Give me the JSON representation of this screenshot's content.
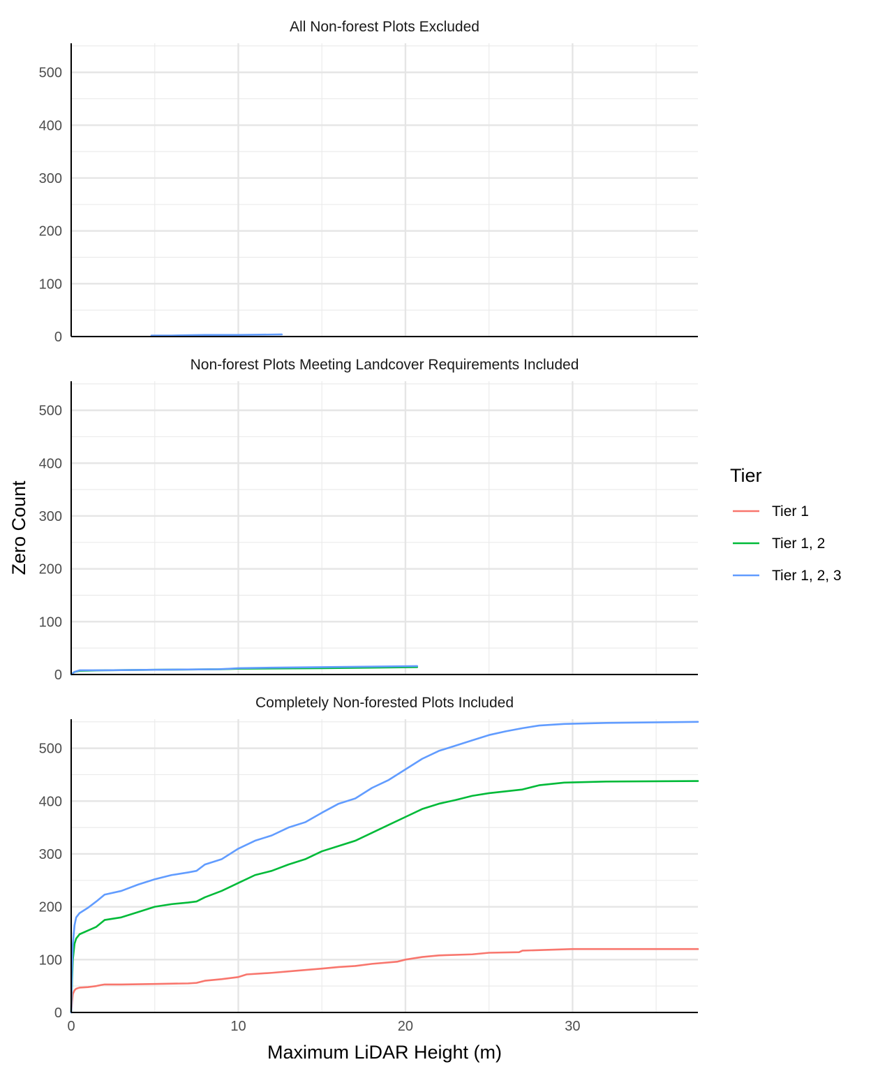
{
  "chart_data": {
    "type": "line",
    "xlabel": "Maximum LiDAR Height (m)",
    "ylabel": "Zero Count",
    "xlim": [
      0,
      37.5
    ],
    "ylim": [
      0,
      555
    ],
    "x_ticks": [
      0,
      10,
      20,
      30
    ],
    "x_tick_labels": [
      "0",
      "10",
      "20",
      "30"
    ],
    "y_ticks": [
      0,
      100,
      200,
      300,
      400,
      500
    ],
    "y_tick_labels": [
      "0",
      "100",
      "200",
      "300",
      "400",
      "500"
    ],
    "grid": true,
    "legend": {
      "title": "Tier",
      "position": "right",
      "entries": [
        {
          "label": "Tier 1",
          "color": "#F8766D"
        },
        {
          "label": "Tier 1, 2",
          "color": "#00BA38"
        },
        {
          "label": "Tier 1, 2, 3",
          "color": "#619CFF"
        }
      ]
    },
    "panels": [
      {
        "title": "All Non-forest Plots Excluded",
        "series": [
          {
            "name": "Tier 1, 2, 3",
            "color": "#619CFF",
            "x": [
              4.8,
              6,
              8,
              10,
              12.6
            ],
            "y": [
              2,
              2,
              3,
              3,
              4
            ]
          }
        ]
      },
      {
        "title": "Non-forest Plots Meeting Landcover Requirements Included",
        "series": [
          {
            "name": "Tier 1, 2",
            "color": "#00BA38",
            "x": [
              0,
              0.2,
              0.5,
              2,
              5,
              9,
              10,
              15,
              20.7
            ],
            "y": [
              0,
              5,
              7,
              8,
              9,
              10,
              11,
              12,
              14
            ]
          },
          {
            "name": "Tier 1, 2, 3",
            "color": "#619CFF",
            "x": [
              0,
              0.2,
              0.5,
              2,
              5,
              8.8,
              9.5,
              10,
              12,
              15,
              18,
              20.7
            ],
            "y": [
              0,
              5,
              8,
              8,
              9,
              10,
              11,
              12,
              13,
              14,
              15,
              16
            ]
          }
        ]
      },
      {
        "title": "Completely Non-forested Plots Included",
        "series": [
          {
            "name": "Tier 1",
            "color": "#F8766D",
            "x": [
              0,
              0.05,
              0.1,
              0.2,
              0.3,
              0.5,
              1,
              1.5,
              1.8,
              2,
              3,
              5,
              7,
              7.5,
              8,
              9,
              10,
              10.5,
              12,
              13.5,
              15,
              16,
              17,
              18,
              19.5,
              20,
              21,
              22,
              24,
              25,
              26.8,
              27,
              30,
              37.5
            ],
            "y": [
              0,
              20,
              35,
              42,
              45,
              47,
              48,
              50,
              52,
              53,
              53,
              54,
              55,
              56,
              60,
              63,
              67,
              72,
              75,
              79,
              83,
              86,
              88,
              92,
              96,
              100,
              105,
              108,
              110,
              113,
              114,
              117,
              120,
              120
            ]
          },
          {
            "name": "Tier 1, 2",
            "color": "#00BA38",
            "x": [
              0,
              0.05,
              0.1,
              0.2,
              0.3,
              0.5,
              1,
              1.5,
              2,
              3,
              4,
              5,
              6,
              7,
              7.5,
              8,
              9,
              10,
              11,
              12,
              13,
              14,
              15,
              16,
              17,
              18,
              19,
              20,
              21,
              22,
              23,
              24,
              25,
              27,
              28,
              29.5,
              32,
              37.5
            ],
            "y": [
              0,
              60,
              100,
              130,
              140,
              148,
              155,
              162,
              175,
              180,
              190,
              200,
              205,
              208,
              210,
              218,
              230,
              245,
              260,
              268,
              280,
              290,
              305,
              315,
              325,
              340,
              355,
              370,
              385,
              395,
              402,
              410,
              415,
              422,
              430,
              435,
              437,
              438
            ]
          },
          {
            "name": "Tier 1, 2, 3",
            "color": "#619CFF",
            "x": [
              0,
              0.05,
              0.1,
              0.2,
              0.3,
              0.5,
              1,
              1.5,
              2,
              3,
              4,
              5,
              6,
              7,
              7.5,
              8,
              9,
              10,
              11,
              12,
              13,
              14,
              15,
              16,
              17,
              18,
              19,
              20,
              21,
              22,
              23,
              24,
              25,
              26,
              27,
              28,
              29.5,
              32,
              37.5
            ],
            "y": [
              0,
              80,
              130,
              165,
              180,
              188,
              198,
              210,
              223,
              230,
              242,
              252,
              260,
              265,
              268,
              280,
              290,
              310,
              325,
              335,
              350,
              360,
              378,
              395,
              405,
              425,
              440,
              460,
              480,
              495,
              505,
              515,
              525,
              532,
              538,
              543,
              546,
              548,
              550
            ]
          }
        ]
      }
    ]
  }
}
